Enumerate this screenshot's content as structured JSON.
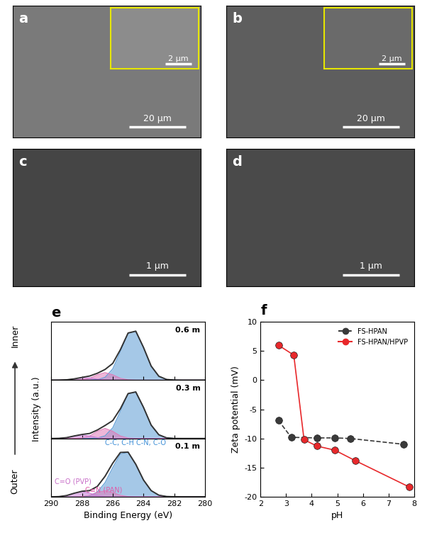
{
  "images": [
    {
      "panel": "a",
      "scale_bar": "20 µm",
      "inset_scale_bar": "2 µm",
      "color": "#7a7a7a"
    },
    {
      "panel": "b",
      "scale_bar": "20 µm",
      "inset_scale_bar": "2 µm",
      "color": "#5e5e5e"
    },
    {
      "panel": "c",
      "scale_bar": "1 µm",
      "color": "#454545"
    },
    {
      "panel": "d",
      "scale_bar": "1 µm",
      "color": "#4a4a4a"
    }
  ],
  "chart_data": [
    {
      "type": "line",
      "panel": "e",
      "xlabel": "Binding Energy (eV)",
      "ylabel": "Intensity (a.u.)",
      "x": [
        290,
        289.5,
        289,
        288.5,
        288,
        287.5,
        287,
        286.5,
        286,
        285.5,
        285,
        284.5,
        284,
        283.5,
        283,
        282.5,
        282,
        281.5,
        281,
        280.5,
        280
      ],
      "xlim": [
        290,
        280
      ],
      "xticks": [
        290,
        288,
        286,
        284,
        282,
        280
      ],
      "tick_labels": "x",
      "axis_arrow": {
        "top": "Inner",
        "bottom": "Outer"
      },
      "subplots": [
        {
          "label": "0.6 m",
          "ylim": [
            0,
            1.15
          ],
          "series": [
            {
              "type": "line",
              "color": "#333333",
              "values": [
                0,
                0.001,
                0.007,
                0.026,
                0.054,
                0.082,
                0.136,
                0.211,
                0.33,
                0.603,
                0.93,
                0.966,
                0.647,
                0.278,
                0.077,
                0.014,
                0.002,
                0,
                0,
                0,
                0
              ]
            },
            {
              "type": "area",
              "color": "#5b9bd5",
              "values": [
                0,
                0,
                0,
                0,
                0,
                0.001,
                0.009,
                0.056,
                0.223,
                0.566,
                0.923,
                0.965,
                0.647,
                0.278,
                0.077,
                0.0135,
                0.0015,
                0,
                0,
                0,
                0
              ]
            },
            {
              "type": "area",
              "color": "#e07ab8",
              "values": [
                0,
                0,
                0,
                0.001,
                0.007,
                0.037,
                0.106,
                0.15,
                0.106,
                0.037,
                0.007,
                0.001,
                0,
                0,
                0,
                0,
                0,
                0,
                0,
                0,
                0
              ]
            },
            {
              "type": "area",
              "color": "#c77dd6",
              "values": [
                0,
                0.001,
                0.007,
                0.025,
                0.047,
                0.044,
                0.021,
                0.005,
                0.001,
                0,
                0,
                0,
                0,
                0,
                0,
                0,
                0,
                0,
                0,
                0,
                0
              ]
            }
          ]
        },
        {
          "label": "0.3 m",
          "ylim": [
            0,
            1.15
          ],
          "series": [
            {
              "type": "line",
              "color": "#333333",
              "values": [
                0,
                0.003,
                0.017,
                0.05,
                0.079,
                0.099,
                0.167,
                0.256,
                0.353,
                0.587,
                0.886,
                0.918,
                0.615,
                0.264,
                0.073,
                0.013,
                0.001,
                0,
                0,
                0,
                0
              ]
            },
            {
              "type": "area",
              "color": "#5b9bd5",
              "values": [
                0,
                0,
                0,
                0,
                0,
                0.001,
                0.009,
                0.053,
                0.212,
                0.538,
                0.877,
                0.917,
                0.615,
                0.264,
                0.073,
                0.013,
                0.001,
                0,
                0,
                0,
                0
              ]
            },
            {
              "type": "area",
              "color": "#e07ab8",
              "values": [
                0,
                0,
                0,
                0.001,
                0.009,
                0.049,
                0.141,
                0.2,
                0.141,
                0.049,
                0.009,
                0.001,
                0,
                0,
                0,
                0,
                0,
                0,
                0,
                0,
                0
              ]
            },
            {
              "type": "area",
              "color": "#c77dd6",
              "values": [
                0,
                0.003,
                0.017,
                0.049,
                0.07,
                0.049,
                0.017,
                0.003,
                0,
                0,
                0,
                0,
                0,
                0,
                0,
                0,
                0,
                0,
                0,
                0,
                0
              ]
            }
          ]
        },
        {
          "label": "0.1 m",
          "ylim": [
            0,
            1.15
          ],
          "series": [
            {
              "type": "line",
              "color": "#333333",
              "values": [
                0,
                0.004,
                0.025,
                0.071,
                0.109,
                0.123,
                0.205,
                0.404,
                0.663,
                0.875,
                0.881,
                0.641,
                0.332,
                0.122,
                0.032,
                0.006,
                0.001,
                0,
                0,
                0,
                0
              ]
            },
            {
              "type": "area",
              "color": "#5b9bd5",
              "values": [
                0,
                0,
                0,
                0,
                0.004,
                0.023,
                0.095,
                0.28,
                0.578,
                0.846,
                0.876,
                0.641,
                0.332,
                0.122,
                0.032,
                0.006,
                0.001,
                0,
                0,
                0,
                0
              ]
            },
            {
              "type": "area",
              "color": "#e07ab8",
              "values": [
                0,
                0,
                0,
                0,
                0.005,
                0.029,
                0.085,
                0.12,
                0.085,
                0.029,
                0.005,
                0,
                0,
                0,
                0,
                0,
                0,
                0,
                0,
                0,
                0
              ]
            },
            {
              "type": "area",
              "color": "#c77dd6",
              "values": [
                0,
                0.004,
                0.025,
                0.071,
                0.1,
                0.071,
                0.025,
                0.004,
                0,
                0,
                0,
                0,
                0,
                0,
                0,
                0,
                0,
                0,
                0,
                0,
                0
              ]
            }
          ]
        }
      ],
      "annotations": [
        {
          "text": "C-C, C-H C-N, C-O",
          "color": "#3d8ed6",
          "subplot": "0.1 m"
        },
        {
          "text": "C=O (PVP)",
          "color": "#c86fc8",
          "subplot": "0.1 m"
        },
        {
          "text": "C≡N (PAN)",
          "color": "#e05aa8",
          "subplot": "0.1 m"
        }
      ]
    },
    {
      "type": "line",
      "panel": "f",
      "xlabel": "pH",
      "ylabel": "Zeta potential (mV)",
      "xlim": [
        2,
        8
      ],
      "xticks": [
        2,
        3,
        4,
        5,
        6,
        7,
        8
      ],
      "ylim": [
        -20,
        10
      ],
      "yticks": [
        -20,
        -15,
        -10,
        -5,
        0,
        5,
        10
      ],
      "legend": "upper right",
      "series": [
        {
          "name": "FS-HPAN",
          "color": "#3a3a3a",
          "marker": "o",
          "line_style": "dashed",
          "x": [
            2.7,
            3.2,
            4.2,
            4.9,
            5.5,
            7.6
          ],
          "values": [
            -6.9,
            -9.8,
            -9.9,
            -9.9,
            -10.0,
            -11.0
          ]
        },
        {
          "name": "FS-HPAN/HPVP",
          "color": "#e8282b",
          "marker": "o",
          "line_style": "solid",
          "x": [
            2.7,
            3.3,
            3.7,
            4.2,
            4.9,
            5.7,
            7.8
          ],
          "values": [
            6.0,
            4.3,
            -10.2,
            -11.3,
            -12.0,
            -13.8,
            -18.3
          ]
        }
      ]
    }
  ]
}
